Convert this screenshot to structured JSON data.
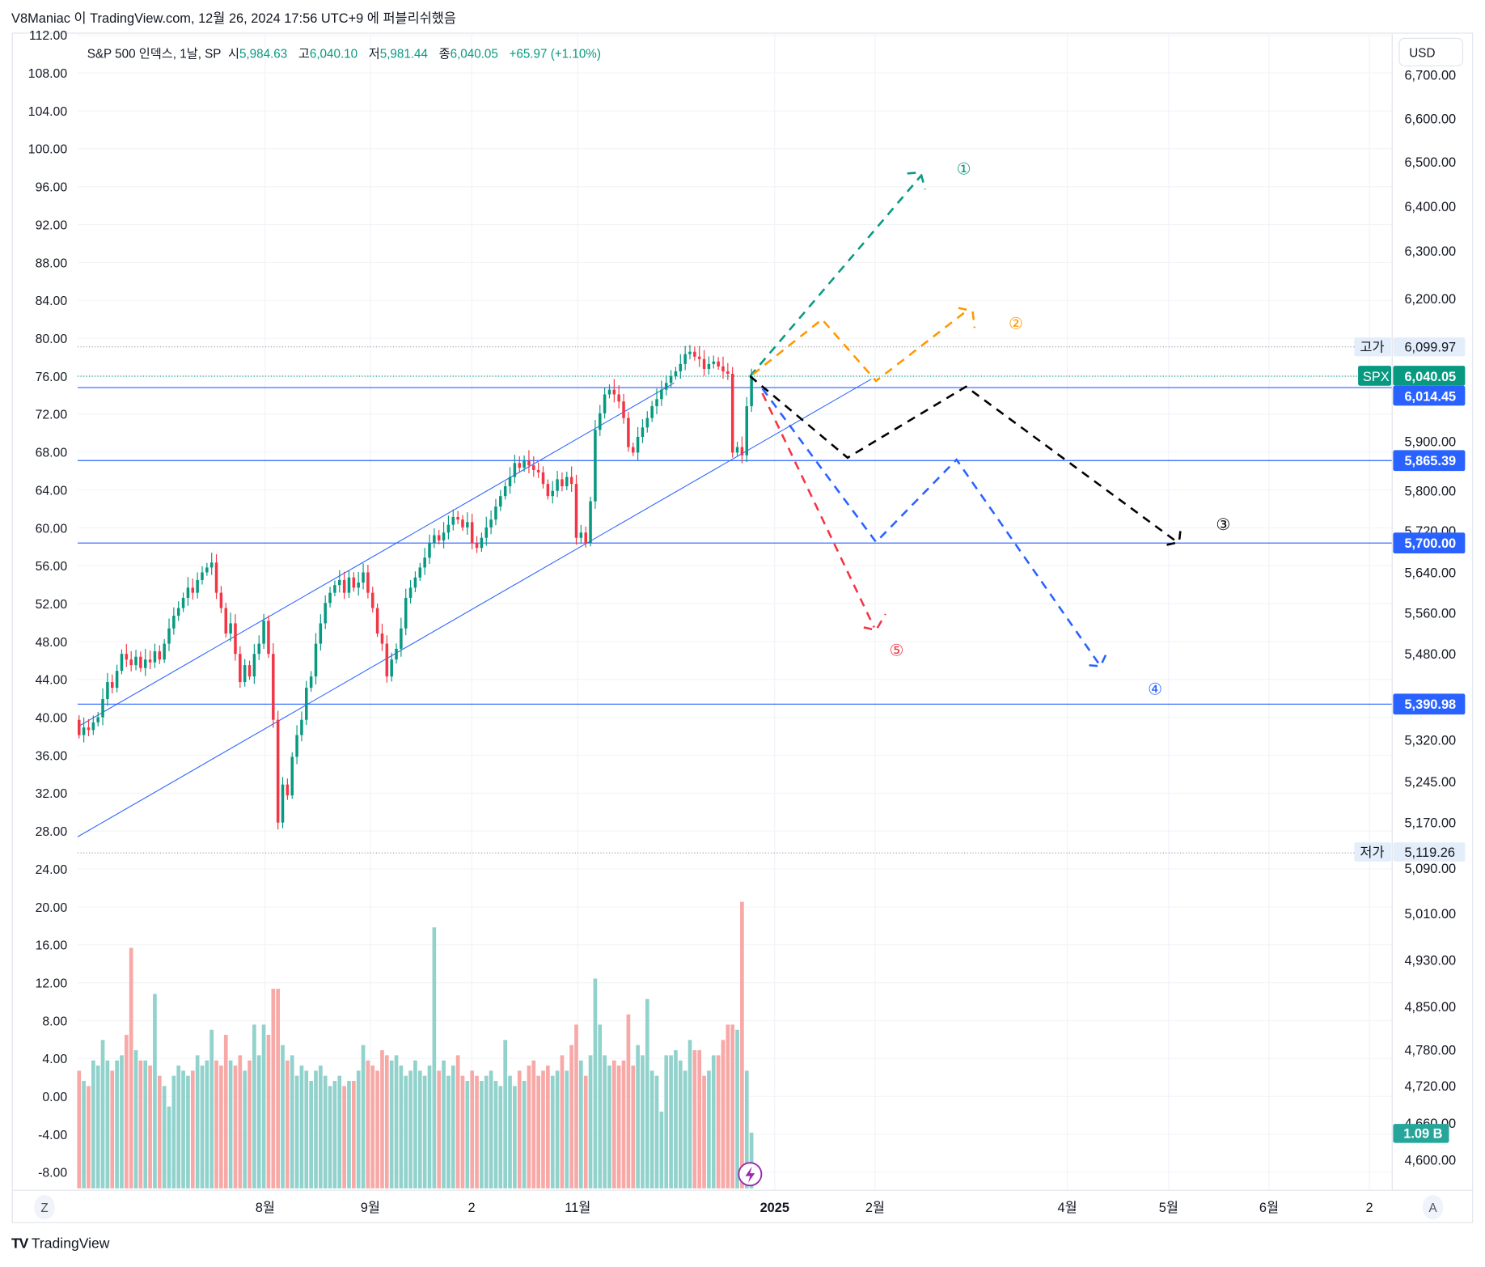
{
  "header": {
    "publish_text": "V8Maniac 이 TradingView.com, 12월 26, 2024 17:56 UTC+9 에 퍼블리쉬했음"
  },
  "legend": {
    "symbol": "S&P 500 인덱스, 1날, SP",
    "open_label": "시",
    "open": "5,984.63",
    "high_label": "고",
    "high": "6,040.10",
    "low_label": "저",
    "low": "5,981.44",
    "close_label": "종",
    "close": "6,040.05",
    "change": "+65.97 (+1.10%)"
  },
  "currency_button": "USD",
  "colors": {
    "up": "#089981",
    "down": "#f23645",
    "vol_up": "#92d2cc",
    "vol_down": "#f7a9a7",
    "line_blue": "#2962ff",
    "accent_purple": "#9c27b0"
  },
  "left_axis": [
    "112.00",
    "108.00",
    "104.00",
    "100.00",
    "96.00",
    "92.00",
    "88.00",
    "84.00",
    "80.00",
    "76.00",
    "72.00",
    "68.00",
    "64.00",
    "60.00",
    "56.00",
    "52.00",
    "48.00",
    "44.00",
    "40.00",
    "36.00",
    "32.00",
    "28.00",
    "24.00",
    "20.00",
    "16.00",
    "12.00",
    "8.00",
    "4.00",
    "0.00",
    "-4.00",
    "-8.00"
  ],
  "right_axis": [
    "6,700.00",
    "6,600.00",
    "6,500.00",
    "6,400.00",
    "6,300.00",
    "6,200.00",
    "5,900.00",
    "5,800.00",
    "5,720.00",
    "5,640.00",
    "5,560.00",
    "5,480.00",
    "5,320.00",
    "5,245.00",
    "5,170.00",
    "5,090.00",
    "5,010.00",
    "4,930.00",
    "4,850.00",
    "4,780.00",
    "4,720.00",
    "4,660.00",
    "4,600.00"
  ],
  "price_tags": {
    "high_label": "고가",
    "high_value": "6,099.97",
    "symbol_label": "SPX",
    "last_value": "6,040.05",
    "level1": "6,014.45",
    "level2": "5,865.39",
    "level3": "5,700.00",
    "level4": "5,390.98",
    "low_label": "저가",
    "low_value": "5,119.26",
    "volume_value": "1.09 B"
  },
  "time_axis": {
    "left_button": "Z",
    "labels": [
      "8월",
      "9월",
      "2",
      "11월",
      "2025",
      "2월",
      "4월",
      "5월",
      "6월",
      "2"
    ],
    "right_button": "A"
  },
  "scenario_labels": [
    "①",
    "②",
    "③",
    "④",
    "⑤"
  ],
  "footer": {
    "brand": "TradingView",
    "logo_mark": "17"
  },
  "chart_data": {
    "type": "candlestick",
    "title": "S&P 500 인덱스, 1날, SP",
    "xlabel": "",
    "ylabel": "",
    "y_scale": "log",
    "horizontal_levels": [
      6014.45,
      5865.39,
      5700.0,
      5390.98
    ],
    "session_high": 6099.97,
    "session_low": 5119.26,
    "last": 6040.05,
    "closes": [
      5330,
      5345,
      5340,
      5355,
      5365,
      5400,
      5430,
      5420,
      5450,
      5480,
      5470,
      5460,
      5475,
      5455,
      5470,
      5465,
      5485,
      5470,
      5500,
      5530,
      5555,
      5570,
      5590,
      5610,
      5600,
      5625,
      5640,
      5650,
      5660,
      5600,
      5570,
      5520,
      5540,
      5480,
      5430,
      5460,
      5440,
      5480,
      5500,
      5545,
      5480,
      5360,
      5170,
      5240,
      5220,
      5290,
      5330,
      5360,
      5420,
      5440,
      5500,
      5540,
      5580,
      5600,
      5615,
      5625,
      5600,
      5630,
      5610,
      5620,
      5640,
      5600,
      5570,
      5520,
      5500,
      5440,
      5470,
      5490,
      5530,
      5590,
      5610,
      5630,
      5650,
      5670,
      5700,
      5715,
      5705,
      5720,
      5735,
      5750,
      5745,
      5730,
      5740,
      5700,
      5690,
      5710,
      5730,
      5745,
      5770,
      5790,
      5810,
      5830,
      5860,
      5850,
      5865,
      5855,
      5845,
      5840,
      5815,
      5790,
      5800,
      5825,
      5810,
      5830,
      5815,
      5710,
      5720,
      5700,
      5780,
      5925,
      5960,
      6000,
      6010,
      6000,
      5985,
      5950,
      5890,
      5880,
      5910,
      5930,
      5950,
      5975,
      5990,
      6010,
      6025,
      6040,
      6050,
      6065,
      6085,
      6090,
      6080,
      6075,
      6055,
      6065,
      6070,
      6060,
      6050,
      6045,
      5880,
      5890,
      5875,
      5975,
      6040
    ],
    "first_open": 5360,
    "volume_billions": [
      2.3,
      2.1,
      2.0,
      2.5,
      2.4,
      2.9,
      2.5,
      2.3,
      2.5,
      2.6,
      3.0,
      4.7,
      2.7,
      2.5,
      2.5,
      2.4,
      3.8,
      2.2,
      2.0,
      1.6,
      2.2,
      2.4,
      2.3,
      2.2,
      2.3,
      2.6,
      2.4,
      2.5,
      3.1,
      2.5,
      2.4,
      3.0,
      2.5,
      2.4,
      2.6,
      2.3,
      2.5,
      3.2,
      2.6,
      3.2,
      3.0,
      3.9,
      3.9,
      2.8,
      2.5,
      2.6,
      2.2,
      2.4,
      2.3,
      2.1,
      2.3,
      2.4,
      2.2,
      2.0,
      2.1,
      2.2,
      2.0,
      2.1,
      2.1,
      2.3,
      2.8,
      2.5,
      2.4,
      2.3,
      2.7,
      2.6,
      2.5,
      2.6,
      2.4,
      2.2,
      2.3,
      2.5,
      2.3,
      2.2,
      2.4,
      5.1,
      2.3,
      2.5,
      2.2,
      2.4,
      2.6,
      2.2,
      2.1,
      2.3,
      2.2,
      2.1,
      2.2,
      2.3,
      2.1,
      2.0,
      2.9,
      2.2,
      2.0,
      2.3,
      2.1,
      2.4,
      2.5,
      2.2,
      2.3,
      2.4,
      2.2,
      2.3,
      2.6,
      2.3,
      2.8,
      3.2,
      2.5,
      2.2,
      2.6,
      4.1,
      3.2,
      2.6,
      2.4,
      2.5,
      2.4,
      2.5,
      3.4,
      2.4,
      2.8,
      2.6,
      3.7,
      2.3,
      2.2,
      1.5,
      2.6,
      2.6,
      2.7,
      2.5,
      2.3,
      2.9,
      2.7,
      2.7,
      2.2,
      2.3,
      2.6,
      2.6,
      2.9,
      3.2,
      3.2,
      3.1,
      5.6,
      2.3,
      1.09
    ],
    "scenarios": [
      {
        "label": "①",
        "color": "#089981"
      },
      {
        "label": "②",
        "color": "#ff9800"
      },
      {
        "label": "③",
        "color": "#000000"
      },
      {
        "label": "④",
        "color": "#2962ff"
      },
      {
        "label": "⑤",
        "color": "#f23645"
      }
    ]
  }
}
